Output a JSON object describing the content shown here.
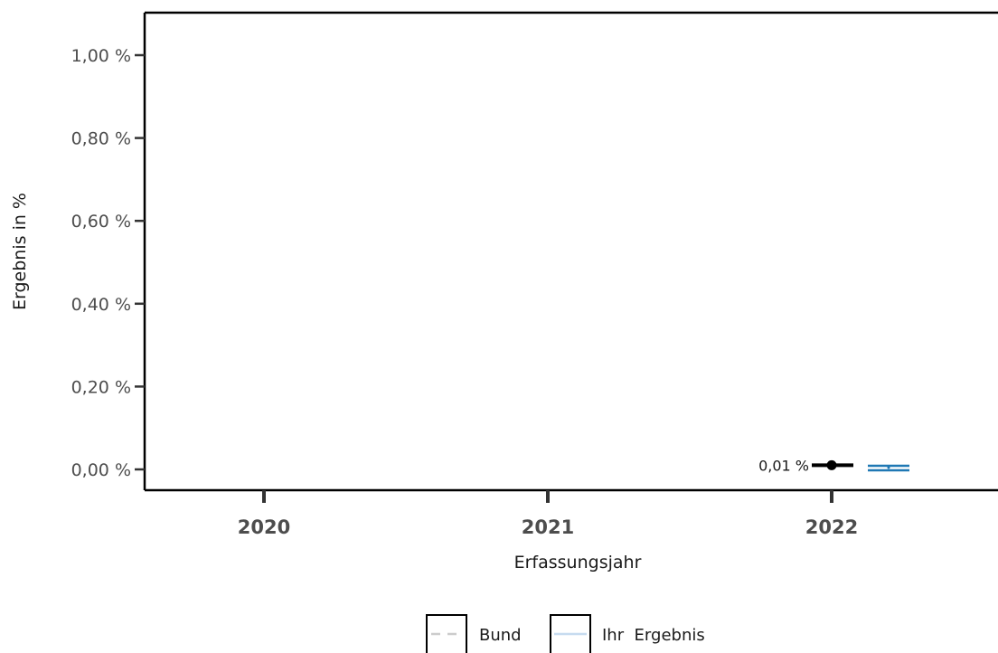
{
  "chart_data": {
    "type": "line",
    "xlabel": "Erfassungsjahr",
    "ylabel": "Ergebnis in %",
    "x": [
      "2020",
      "2021",
      "2022"
    ],
    "ylim": [
      0,
      1.05
    ],
    "y_ticks": [
      {
        "value": 0.0,
        "label": "0,00 %"
      },
      {
        "value": 0.2,
        "label": "0,20 %"
      },
      {
        "value": 0.4,
        "label": "0,40 %"
      },
      {
        "value": 0.6,
        "label": "0,60 %"
      },
      {
        "value": 0.8,
        "label": "0,80 %"
      },
      {
        "value": 1.0,
        "label": "1,00 %"
      }
    ],
    "grid": false,
    "legend_position": "bottom",
    "series": [
      {
        "name": "Bund",
        "style": "dashed",
        "color": "#cccccc",
        "points": [
          {
            "x": "2022",
            "y": 0.01,
            "label": "0,01 %",
            "marker_color": "#000000",
            "bar_color": "#000000"
          }
        ]
      },
      {
        "name": "Ihr  Ergebnis",
        "style": "solid",
        "color": "#c6dbef",
        "points": [
          {
            "x": "2022",
            "y": 0.0,
            "label": "",
            "marker_color": "#1f78b4",
            "bar_color": "#1f78b4"
          }
        ]
      }
    ],
    "legend": [
      {
        "name": "Bund",
        "text_color": "#1a1a1a"
      },
      {
        "name": "Ihr  Ergebnis",
        "text_color": "#1f78b4"
      }
    ]
  }
}
